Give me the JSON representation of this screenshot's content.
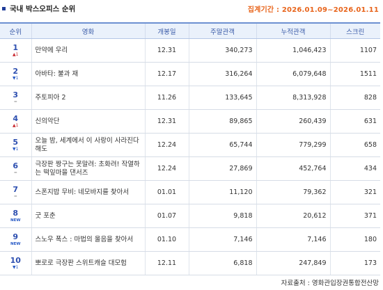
{
  "title": "국내 박스오피스 순위",
  "period_label": "집계기간 : 2026.01.09~2026.01.11",
  "columns": [
    "순위",
    "영화",
    "개봉일",
    "주말관객",
    "누적관객",
    "스크린"
  ],
  "rows": [
    {
      "rank": "1",
      "change": "1",
      "change_type": "up",
      "title": "만약에 우리",
      "release": "12.31",
      "weekend": "340,273",
      "cumulative": "1,046,423",
      "screens": "1107"
    },
    {
      "rank": "2",
      "change": "1",
      "change_type": "down",
      "title": "아바타: 불과 재",
      "release": "12.17",
      "weekend": "316,264",
      "cumulative": "6,079,648",
      "screens": "1511"
    },
    {
      "rank": "3",
      "change": "",
      "change_type": "flat",
      "title": "주토피아 2",
      "release": "11.26",
      "weekend": "133,645",
      "cumulative": "8,313,928",
      "screens": "828"
    },
    {
      "rank": "4",
      "change": "1",
      "change_type": "up",
      "title": "신의악단",
      "release": "12.31",
      "weekend": "89,865",
      "cumulative": "260,439",
      "screens": "631"
    },
    {
      "rank": "5",
      "change": "1",
      "change_type": "down",
      "title": "오늘 밤, 세계에서 이 사랑이 사라진다 해도",
      "release": "12.24",
      "weekend": "65,744",
      "cumulative": "779,299",
      "screens": "658"
    },
    {
      "rank": "6",
      "change": "",
      "change_type": "flat",
      "title": "극장판 짱구는 못말려: 초화려! 작열하는 떡잎마을 댄서즈",
      "release": "12.24",
      "weekend": "27,869",
      "cumulative": "452,764",
      "screens": "434"
    },
    {
      "rank": "7",
      "change": "",
      "change_type": "flat",
      "title": "스폰지밥 무비: 네모바지를 찾아서",
      "release": "01.01",
      "weekend": "11,120",
      "cumulative": "79,362",
      "screens": "321"
    },
    {
      "rank": "8",
      "change": "NEW",
      "change_type": "new",
      "title": "굿 포춘",
      "release": "01.07",
      "weekend": "9,818",
      "cumulative": "20,612",
      "screens": "371"
    },
    {
      "rank": "9",
      "change": "NEW",
      "change_type": "new",
      "title": "스노우 폭스 : 마법의 울음을 찾아서",
      "release": "01.10",
      "weekend": "7,146",
      "cumulative": "7,146",
      "screens": "180"
    },
    {
      "rank": "10",
      "change": "1",
      "change_type": "down",
      "title": "뽀로로 극장판 스위트캐슬 대모험",
      "release": "12.11",
      "weekend": "6,818",
      "cumulative": "247,849",
      "screens": "173"
    }
  ],
  "source": "자료출처 : 영화관입장권통합전산망",
  "colors": {
    "accent": "#e8641b",
    "rank_blue": "#2d4fb0",
    "header_bg": "#eaf1fb",
    "up": "#c8272d",
    "down": "#2457c5"
  }
}
